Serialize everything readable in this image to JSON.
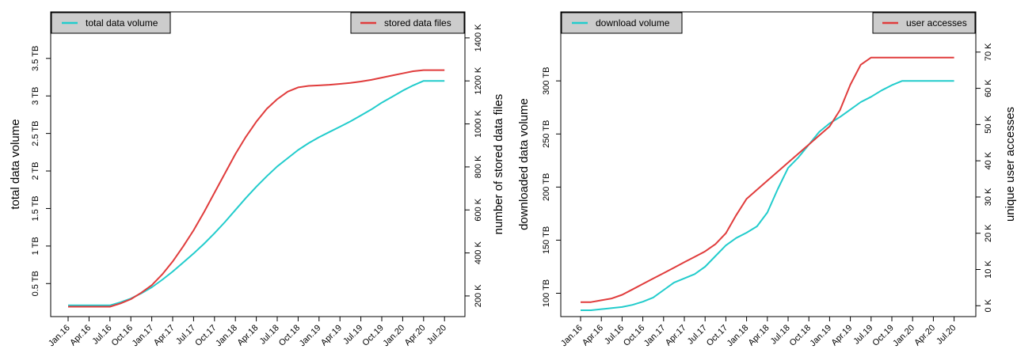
{
  "chart_data": [
    {
      "type": "line",
      "x_ticks": [
        "Jan.16",
        "Apr.16",
        "Jul.16",
        "Oct.16",
        "Jan.17",
        "Apr.17",
        "Jul.17",
        "Oct.17",
        "Jan.18",
        "Apr.18",
        "Jul.18",
        "Oct.18",
        "Jan.19",
        "Apr.19",
        "Jul.19",
        "Oct.19",
        "Jan.20",
        "Apr.20",
        "Jul.20"
      ],
      "ylabel_left": "total data volume",
      "ylabel_right": "number of stored data files",
      "left_ticks": [
        {
          "value": 0.5,
          "label": "0.5 TB"
        },
        {
          "value": 1,
          "label": "1 TB"
        },
        {
          "value": 1.5,
          "label": "1.5 TB"
        },
        {
          "value": 2,
          "label": "2 TB"
        },
        {
          "value": 2.5,
          "label": "2.5 TB"
        },
        {
          "value": 3,
          "label": "3 TB"
        },
        {
          "value": 3.5,
          "label": "3.5 TB"
        }
      ],
      "right_ticks": [
        {
          "value": 200,
          "label": "200 K"
        },
        {
          "value": 400,
          "label": "400 K"
        },
        {
          "value": 600,
          "label": "600 K"
        },
        {
          "value": 800,
          "label": "800 K"
        },
        {
          "value": 1000,
          "label": "1000 K"
        },
        {
          "value": 1200,
          "label": "1200 K"
        },
        {
          "value": 1400,
          "label": "1400 K"
        }
      ],
      "left_range": [
        0.06,
        4.12
      ],
      "right_range": [
        104,
        1521
      ],
      "legend_left": {
        "label": "total data volume",
        "color": "#22cccc"
      },
      "legend_right": {
        "label": "stored data files",
        "color": "#e03c3c"
      },
      "series": [
        {
          "name": "total data volume",
          "axis": "left",
          "color": "#22cccc",
          "x": [
            0,
            0.5,
            1,
            1.5,
            2,
            2.5,
            3,
            3.5,
            4,
            4.5,
            5,
            5.5,
            6,
            6.5,
            7,
            7.5,
            8,
            8.5,
            9,
            9.5,
            10,
            10.5,
            11,
            11.5,
            12,
            12.5,
            13,
            13.5,
            14,
            14.5,
            15,
            15.5,
            16,
            16.5,
            17,
            17.5,
            18
          ],
          "y": [
            0.21,
            0.21,
            0.21,
            0.21,
            0.21,
            0.25,
            0.3,
            0.37,
            0.45,
            0.55,
            0.66,
            0.78,
            0.9,
            1.03,
            1.17,
            1.32,
            1.48,
            1.64,
            1.79,
            1.93,
            2.06,
            2.17,
            2.28,
            2.37,
            2.45,
            2.52,
            2.59,
            2.66,
            2.74,
            2.82,
            2.91,
            2.99,
            3.07,
            3.14,
            3.2,
            3.2,
            3.2
          ]
        },
        {
          "name": "stored data files",
          "axis": "right",
          "color": "#e03c3c",
          "x": [
            0,
            0.5,
            1,
            1.5,
            2,
            2.5,
            3,
            3.5,
            4,
            4.5,
            5,
            5.5,
            6,
            6.5,
            7,
            7.5,
            8,
            8.5,
            9,
            9.5,
            10,
            10.5,
            11,
            11.5,
            12,
            12.5,
            13,
            13.5,
            14,
            14.5,
            15,
            15.5,
            16,
            16.5,
            17,
            17.5,
            18
          ],
          "y": [
            150,
            150,
            150,
            150,
            150,
            165,
            185,
            215,
            250,
            300,
            360,
            430,
            505,
            590,
            680,
            770,
            860,
            940,
            1010,
            1070,
            1115,
            1150,
            1170,
            1177,
            1179,
            1182,
            1186,
            1191,
            1197,
            1205,
            1215,
            1225,
            1235,
            1245,
            1250,
            1250,
            1250
          ]
        }
      ]
    },
    {
      "type": "line",
      "x_ticks": [
        "Jan.16",
        "Apr.16",
        "Jul.16",
        "Oct.16",
        "Jan.17",
        "Apr.17",
        "Jul.17",
        "Oct.17",
        "Jan.18",
        "Apr.18",
        "Jul.18",
        "Oct.18",
        "Jan.19",
        "Apr.19",
        "Jul.19",
        "Oct.19",
        "Jan.20",
        "Apr.20",
        "Jul.20"
      ],
      "ylabel_left": "downloaded data volume",
      "ylabel_right": "unique user accesses",
      "left_ticks": [
        {
          "value": 100,
          "label": "100 TB"
        },
        {
          "value": 150,
          "label": "150 TB"
        },
        {
          "value": 200,
          "label": "200 TB"
        },
        {
          "value": 250,
          "label": "250 TB"
        },
        {
          "value": 300,
          "label": "300 TB"
        }
      ],
      "right_ticks": [
        {
          "value": 0,
          "label": "0 K"
        },
        {
          "value": 10,
          "label": "10 K"
        },
        {
          "value": 20,
          "label": "20 K"
        },
        {
          "value": 30,
          "label": "30 K"
        },
        {
          "value": 40,
          "label": "40 K"
        },
        {
          "value": 50,
          "label": "50 K"
        },
        {
          "value": 60,
          "label": "60 K"
        },
        {
          "value": 70,
          "label": "70 K"
        }
      ],
      "left_range": [
        78,
        365
      ],
      "right_range": [
        -3.0,
        81.1
      ],
      "legend_left": {
        "label": "download volume",
        "color": "#22cccc"
      },
      "legend_right": {
        "label": "user accesses",
        "color": "#e03c3c"
      },
      "series": [
        {
          "name": "download volume",
          "axis": "left",
          "color": "#22cccc",
          "x": [
            0,
            0.5,
            1,
            1.5,
            2,
            2.5,
            3,
            3.5,
            4,
            4.5,
            5,
            5.5,
            6,
            6.5,
            7,
            7.5,
            8,
            8.5,
            9,
            9.5,
            10,
            10.5,
            11,
            11.5,
            12,
            12.5,
            13,
            13.5,
            14,
            14.5,
            15,
            15.5,
            16,
            16.5,
            17,
            17.5,
            18
          ],
          "y": [
            84,
            84,
            85,
            86,
            87,
            89,
            92,
            96,
            103,
            110,
            114,
            118,
            125,
            135,
            145,
            152,
            157,
            163,
            176,
            198,
            218,
            228,
            240,
            252,
            260,
            266,
            273,
            280,
            285,
            291,
            296,
            300,
            300,
            300,
            300,
            300,
            300
          ],
          "x_max": 18
        },
        {
          "name": "user accesses",
          "axis": "right",
          "color": "#e03c3c",
          "x": [
            0,
            0.5,
            1,
            1.5,
            2,
            2.5,
            3,
            3.5,
            4,
            4.5,
            5,
            5.5,
            6,
            6.5,
            7,
            7.5,
            8,
            8.5,
            9,
            9.5,
            10,
            10.5,
            11,
            11.5,
            12,
            12.5,
            13,
            13.5,
            14,
            14.5,
            15,
            15.5,
            16,
            16.5,
            17,
            17.5,
            18
          ],
          "y": [
            1,
            1,
            1.5,
            2,
            3,
            4.5,
            6,
            7.5,
            9,
            10.5,
            12,
            13.5,
            15,
            17,
            20,
            25,
            29.5,
            32,
            34.5,
            37,
            39.5,
            42,
            44.5,
            47,
            49.5,
            54,
            61,
            66.5,
            68.5,
            68.5,
            68.5,
            68.5,
            68.5,
            68.5,
            68.5,
            68.5,
            68.5
          ],
          "x_max": 17
        }
      ]
    }
  ]
}
